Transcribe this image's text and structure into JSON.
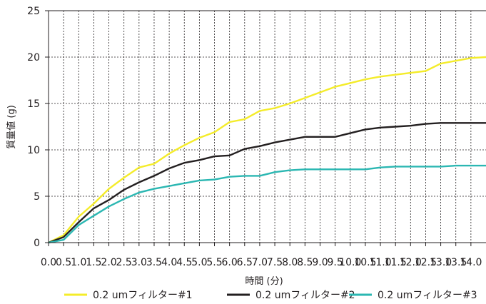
{
  "chart_data": {
    "type": "line",
    "title": "",
    "xlabel": "時間 (分)",
    "ylabel": "質量値 (g)",
    "xlim": [
      0,
      14.5
    ],
    "ylim": [
      0,
      25
    ],
    "grid": true,
    "legend_position": "bottom",
    "x_ticks": [
      0,
      0.5,
      1,
      1.5,
      2,
      2.5,
      3,
      3.5,
      4,
      4.5,
      5,
      5.5,
      6,
      6.5,
      7,
      7.5,
      8,
      8.5,
      9,
      9.5,
      10,
      10.5,
      11,
      11.5,
      12,
      12.5,
      13,
      13.5,
      14
    ],
    "x_tick_labels": [
      "0.0",
      "0.5",
      "1.0",
      "1.5",
      "2.0",
      "2.5",
      "3.0",
      "3.5",
      "4.0",
      "4.5",
      "5.0",
      "5.5",
      "6.0",
      "6.5",
      "7.0",
      "7.5",
      "8.0",
      "8.5",
      "9.0",
      "9.5",
      "10.0",
      "10.5",
      "11.0",
      "11.5",
      "12.0",
      "12.5",
      "13.0",
      "13.5",
      "14.0"
    ],
    "y_ticks": [
      0,
      5,
      10,
      15,
      20,
      25
    ],
    "y_tick_labels": [
      "0",
      "5",
      "10",
      "15",
      "20",
      "25"
    ],
    "series": [
      {
        "name": "0.2 umフィルター#1",
        "color": "#f4ec2a",
        "points": [
          [
            0,
            0
          ],
          [
            0.5,
            0.8
          ],
          [
            1,
            2.8
          ],
          [
            1.5,
            4.2
          ],
          [
            2,
            5.8
          ],
          [
            2.5,
            7
          ],
          [
            3,
            8.1
          ],
          [
            3.5,
            8.5
          ],
          [
            4,
            9.6
          ],
          [
            4.5,
            10.5
          ],
          [
            5,
            11.3
          ],
          [
            5.5,
            11.9
          ],
          [
            6,
            13
          ],
          [
            6.5,
            13.3
          ],
          [
            7,
            14.2
          ],
          [
            7.5,
            14.5
          ],
          [
            8,
            15
          ],
          [
            8.5,
            15.6
          ],
          [
            9,
            16.2
          ],
          [
            9.5,
            16.8
          ],
          [
            10,
            17.2
          ],
          [
            10.5,
            17.6
          ],
          [
            11,
            17.9
          ],
          [
            11.5,
            18.1
          ],
          [
            12,
            18.3
          ],
          [
            12.5,
            18.5
          ],
          [
            13,
            19.3
          ],
          [
            13.5,
            19.6
          ],
          [
            14,
            19.9
          ],
          [
            14.5,
            20
          ]
        ]
      },
      {
        "name": "0.2 umフィルター#2",
        "color": "#231f20",
        "points": [
          [
            0,
            0
          ],
          [
            0.5,
            0.6
          ],
          [
            1,
            2.2
          ],
          [
            1.5,
            3.7
          ],
          [
            2,
            4.6
          ],
          [
            2.5,
            5.7
          ],
          [
            3,
            6.5
          ],
          [
            3.5,
            7.2
          ],
          [
            4,
            8
          ],
          [
            4.5,
            8.6
          ],
          [
            5,
            8.9
          ],
          [
            5.5,
            9.3
          ],
          [
            6,
            9.4
          ],
          [
            6.5,
            10.1
          ],
          [
            7,
            10.4
          ],
          [
            7.5,
            10.8
          ],
          [
            8,
            11.1
          ],
          [
            8.5,
            11.4
          ],
          [
            9,
            11.4
          ],
          [
            9.5,
            11.4
          ],
          [
            10,
            11.8
          ],
          [
            10.5,
            12.2
          ],
          [
            11,
            12.4
          ],
          [
            11.5,
            12.5
          ],
          [
            12,
            12.6
          ],
          [
            12.5,
            12.8
          ],
          [
            13,
            12.9
          ],
          [
            13.5,
            12.9
          ],
          [
            14,
            12.9
          ],
          [
            14.5,
            12.9
          ]
        ]
      },
      {
        "name": "0.2 umフィルター#3",
        "color": "#2bb7b2",
        "points": [
          [
            0,
            0
          ],
          [
            0.5,
            0.3
          ],
          [
            1,
            1.9
          ],
          [
            1.5,
            2.9
          ],
          [
            2,
            3.9
          ],
          [
            2.5,
            4.7
          ],
          [
            3,
            5.4
          ],
          [
            3.5,
            5.8
          ],
          [
            4,
            6.1
          ],
          [
            4.5,
            6.4
          ],
          [
            5,
            6.7
          ],
          [
            5.5,
            6.8
          ],
          [
            6,
            7.1
          ],
          [
            6.5,
            7.2
          ],
          [
            7,
            7.2
          ],
          [
            7.5,
            7.6
          ],
          [
            8,
            7.8
          ],
          [
            8.5,
            7.9
          ],
          [
            9,
            7.9
          ],
          [
            9.5,
            7.9
          ],
          [
            10,
            7.9
          ],
          [
            10.5,
            7.9
          ],
          [
            11,
            8.1
          ],
          [
            11.5,
            8.2
          ],
          [
            12,
            8.2
          ],
          [
            12.5,
            8.2
          ],
          [
            13,
            8.2
          ],
          [
            13.5,
            8.3
          ],
          [
            14,
            8.3
          ],
          [
            14.5,
            8.3
          ]
        ]
      }
    ]
  }
}
